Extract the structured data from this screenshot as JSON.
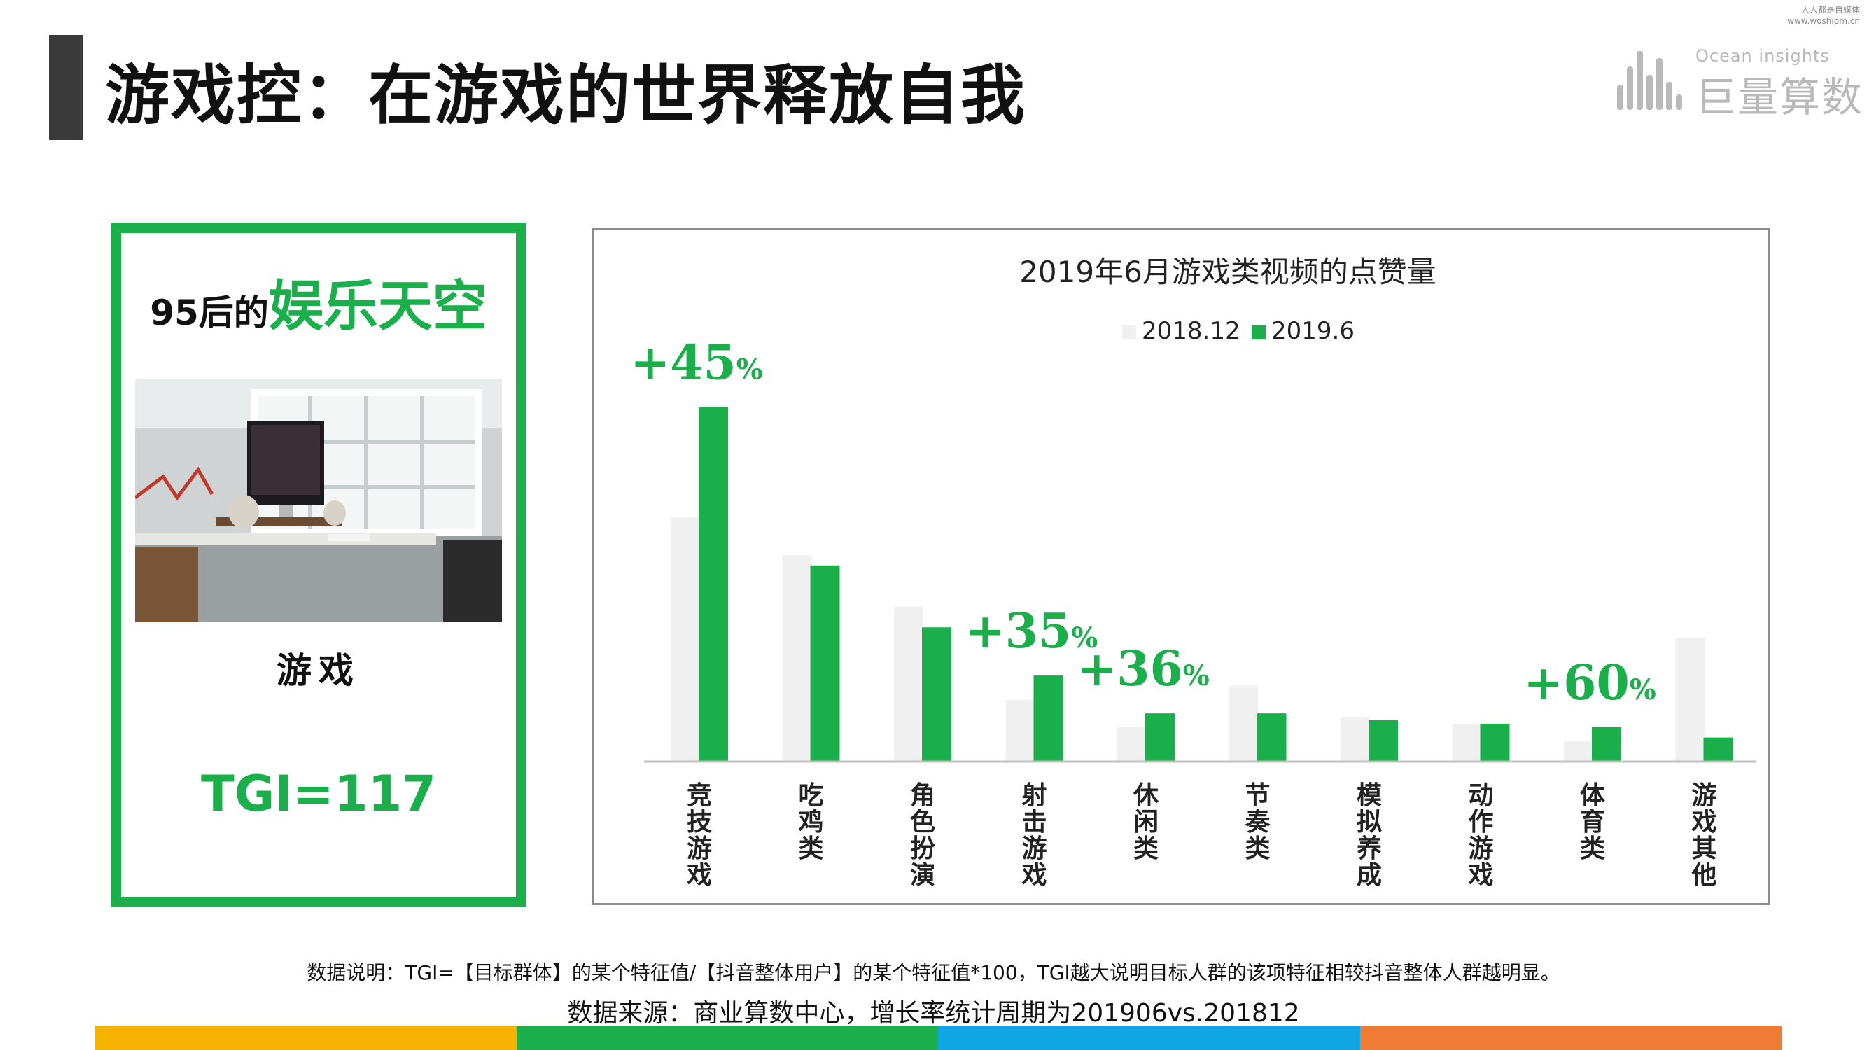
{
  "header": {
    "title": "游戏控：在游戏的世界释放自我",
    "brand_sub": "Ocean insights",
    "brand_name": "巨量算数",
    "watermark_line1": "人人都是自媒体",
    "watermark_line2": "www.woshipm.cn"
  },
  "card": {
    "prefix": "95后的",
    "emph": "娱乐天空",
    "label": "游戏",
    "tgi": "TGI=117",
    "photo_icon": "desk-workspace-photo"
  },
  "chart_data": {
    "type": "bar",
    "title": "2019年6月游戏类视频的点赞量",
    "categories": [
      "竞技游戏",
      "吃鸡类",
      "角色扮演",
      "射击游戏",
      "休闲类",
      "节奏类",
      "模拟养成",
      "动作游戏",
      "体育类",
      "游戏其他"
    ],
    "series": [
      {
        "name": "2018.12",
        "color": "#f0f0f0",
        "values": [
          71,
          60,
          45,
          18,
          10,
          22,
          13,
          11,
          6,
          36
        ]
      },
      {
        "name": "2019.6",
        "color": "#1aaf4b",
        "values": [
          103,
          57,
          39,
          25,
          14,
          14,
          12,
          11,
          10,
          7
        ]
      }
    ],
    "annotations": [
      {
        "category_index": 0,
        "value": "+45",
        "unit": "%"
      },
      {
        "category_index": 3,
        "value": "+35",
        "unit": "%"
      },
      {
        "category_index": 4,
        "value": "+36",
        "unit": "%"
      },
      {
        "category_index": 8,
        "value": "+60",
        "unit": "%"
      }
    ],
    "legend_position": "top-center",
    "grid": false,
    "ylim": [
      0,
      120
    ]
  },
  "footer": {
    "note": "数据说明：TGI=【目标群体】的某个特征值/【抖音整体用户】的某个特征值*100，TGI越大说明目标人群的该项特征相较抖音整体人群越明显。",
    "source": "数据来源：商业算数中心，增长率统计周期为201906vs.201812",
    "stripe_colors": [
      "#f5b300",
      "#1aaf4b",
      "#10a6e6",
      "#ef7b34"
    ]
  }
}
